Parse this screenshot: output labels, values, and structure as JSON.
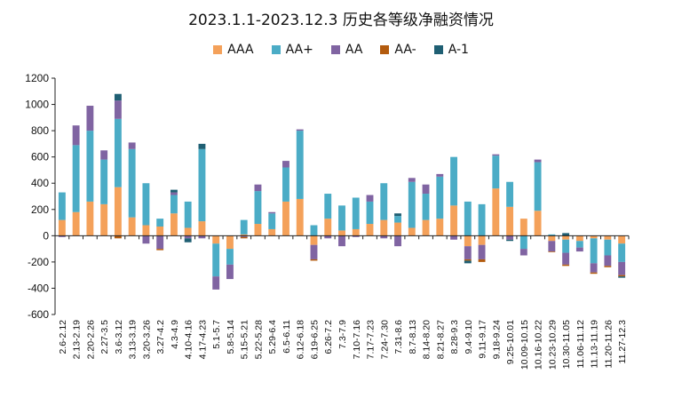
{
  "chart_data": {
    "type": "bar",
    "stacked": true,
    "title": "2023.1.1-2023.12.3 历史各等级净融资情况",
    "xlabel": "",
    "ylabel": "",
    "ylim": [
      -600,
      1200
    ],
    "yticks": [
      -600,
      -400,
      -200,
      0,
      200,
      400,
      600,
      800,
      1000,
      1200
    ],
    "legend_position": "top",
    "grid": false,
    "categories": [
      "2.6-2.12",
      "2.13-2.19",
      "2.20-2.26",
      "2.27-3.5",
      "3.6-3.12",
      "3.13-3.19",
      "3.20-3.26",
      "3.27-4.2",
      "4.3-4.9",
      "4.10-4.16",
      "4.17-4.23",
      "5.1-5.7",
      "5.8-5.14",
      "5.15-5.21",
      "5.22-5.28",
      "5.29-6.4",
      "6.5-6.11",
      "6.12-6.18",
      "6.19-6.25",
      "6.26-7.2",
      "7.3-7.9",
      "7.10-7.16",
      "7.17-7.23",
      "7.24-7.30",
      "7.31-8.6",
      "8.7-8.13",
      "8.14-8.20",
      "8.21-8.27",
      "8.28-9.3",
      "9.4-9.10",
      "9.11-9.17",
      "9.18-9.24",
      "9.25-10.01",
      "10.09-10.15",
      "10.16-10.22",
      "10.23-10.29",
      "10.30-11.05",
      "11.06-11.12",
      "11.13-11.19",
      "11.20-11.26",
      "11.27-12.3"
    ],
    "series": [
      {
        "name": "AAA",
        "color": "#F4A15A",
        "values": [
          120,
          180,
          260,
          240,
          370,
          140,
          80,
          70,
          170,
          60,
          110,
          -60,
          -100,
          10,
          90,
          50,
          260,
          280,
          -70,
          130,
          40,
          50,
          90,
          120,
          100,
          60,
          120,
          130,
          230,
          -80,
          -70,
          360,
          220,
          130,
          190,
          -40,
          -30,
          -40,
          -20,
          -30,
          -60
        ]
      },
      {
        "name": "AA+",
        "color": "#4BACC6",
        "values": [
          210,
          510,
          540,
          340,
          520,
          520,
          320,
          60,
          140,
          200,
          550,
          -250,
          -120,
          110,
          250,
          120,
          260,
          520,
          80,
          190,
          190,
          240,
          170,
          280,
          50,
          350,
          200,
          320,
          370,
          260,
          240,
          250,
          190,
          -100,
          370,
          10,
          -100,
          -50,
          -190,
          -120,
          -140
        ]
      },
      {
        "name": "AA",
        "color": "#8064A2",
        "values": [
          -10,
          150,
          190,
          70,
          140,
          50,
          -60,
          -100,
          20,
          -20,
          -20,
          -100,
          -110,
          -10,
          50,
          10,
          50,
          10,
          -110,
          -20,
          -80,
          -10,
          50,
          -20,
          -80,
          30,
          70,
          20,
          -30,
          -100,
          -110,
          10,
          -30,
          -50,
          20,
          -80,
          -90,
          -30,
          -70,
          -80,
          -100
        ]
      },
      {
        "name": "AA-",
        "color": "#B35B0E",
        "values": [
          0,
          0,
          0,
          0,
          -20,
          0,
          0,
          -10,
          0,
          0,
          0,
          0,
          0,
          -10,
          0,
          0,
          0,
          0,
          -10,
          0,
          0,
          0,
          0,
          0,
          0,
          0,
          0,
          0,
          0,
          -10,
          -20,
          0,
          0,
          0,
          0,
          -5,
          -10,
          0,
          -10,
          -10,
          -10
        ]
      },
      {
        "name": "A-1",
        "color": "#1F5F73",
        "values": [
          0,
          0,
          0,
          0,
          50,
          0,
          0,
          0,
          20,
          -30,
          40,
          0,
          0,
          0,
          0,
          0,
          0,
          0,
          0,
          0,
          0,
          0,
          0,
          0,
          20,
          0,
          0,
          0,
          0,
          -20,
          0,
          0,
          -10,
          0,
          0,
          0,
          20,
          0,
          0,
          0,
          -10
        ]
      }
    ]
  }
}
